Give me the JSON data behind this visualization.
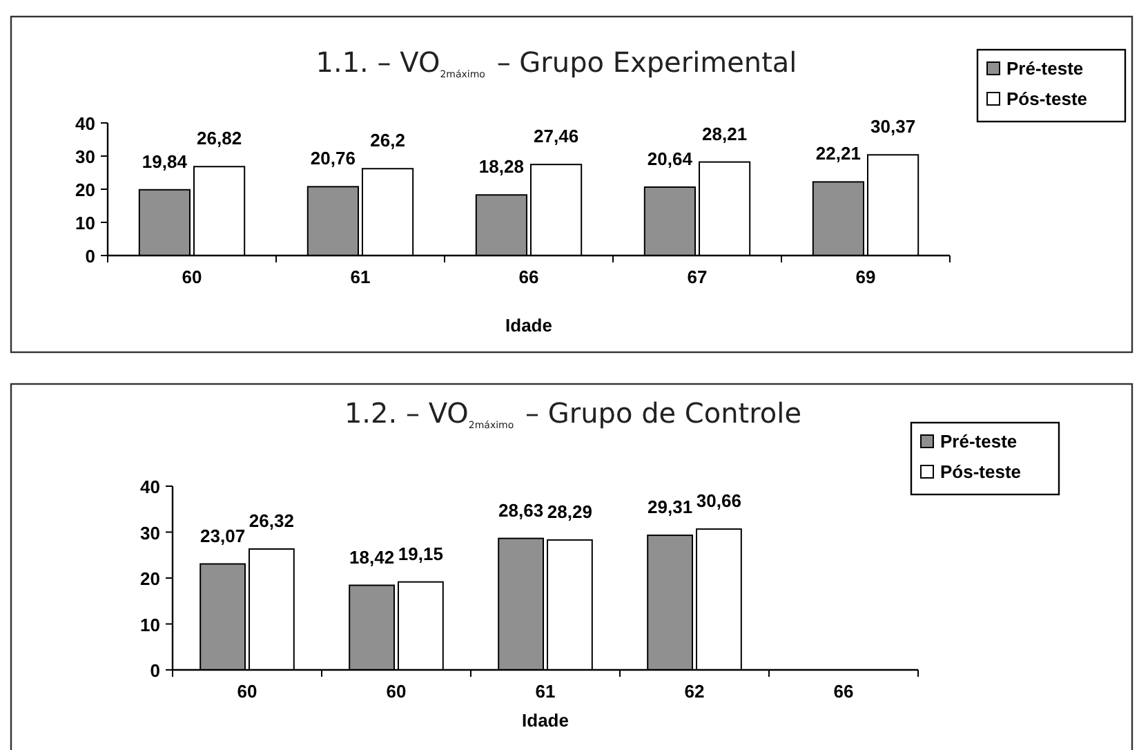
{
  "chart_data": [
    {
      "type": "bar",
      "title": "1.1. – VO$_{2máximo}$ – Grupo Experimental",
      "xlabel": "Idade",
      "categories": [
        "60",
        "61",
        "66",
        "67",
        "69"
      ],
      "ylim": [
        0,
        40
      ],
      "yticks": [
        0,
        10,
        20,
        30,
        40
      ],
      "legend": "top right",
      "series": [
        {
          "name": "Pré-teste",
          "color": "#909090",
          "values": [
            19.84,
            20.76,
            18.28,
            20.64,
            22.21
          ],
          "value_labels": [
            "19,84",
            "20,76",
            "18,28",
            "20,64",
            "22,21"
          ]
        },
        {
          "name": "Pós-teste",
          "color": "#ffffff",
          "values": [
            26.82,
            26.2,
            27.46,
            28.21,
            30.37
          ],
          "value_labels": [
            "26,82",
            "26,2",
            "27,46",
            "28,21",
            "30,37"
          ]
        }
      ]
    },
    {
      "type": "bar",
      "title": "1.2. – VO$_{2máximo}$ – Grupo de Controle",
      "xlabel": "Idade",
      "categories": [
        "60",
        "60",
        "61",
        "62",
        "66"
      ],
      "ylim": [
        0,
        40
      ],
      "yticks": [
        0,
        10,
        20,
        30,
        40
      ],
      "legend": "top right",
      "series": [
        {
          "name": "Pré-teste",
          "color": "#909090",
          "values": [
            23.07,
            18.42,
            28.63,
            29.31,
            null
          ],
          "value_labels": [
            "23,07",
            "18,42",
            "28,63",
            "29,31",
            null
          ]
        },
        {
          "name": "Pós-teste",
          "color": "#ffffff",
          "values": [
            26.32,
            19.15,
            28.29,
            30.66,
            null
          ],
          "value_labels": [
            "26,32",
            "19,15",
            "28,29",
            "30,66",
            null
          ]
        }
      ]
    }
  ]
}
